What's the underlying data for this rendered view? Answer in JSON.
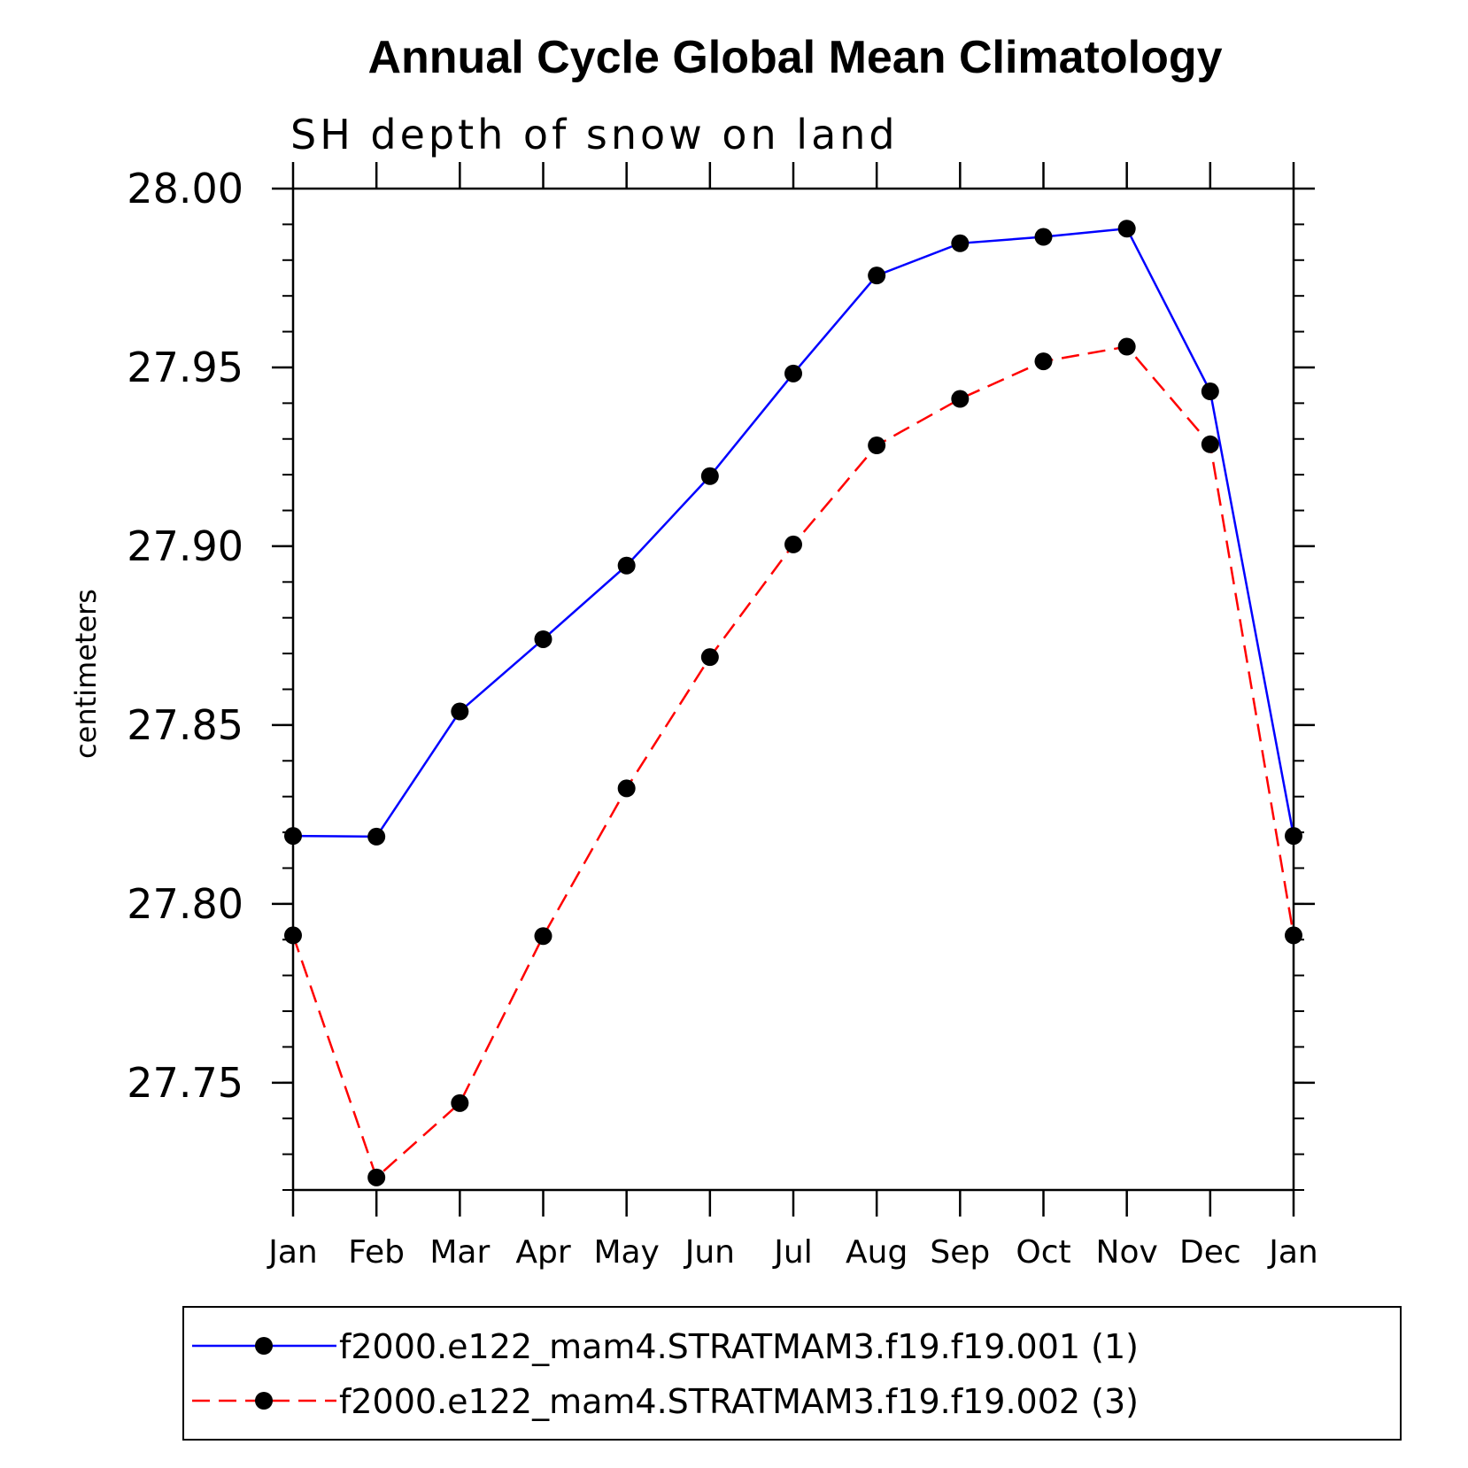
{
  "chart_data": {
    "type": "line",
    "title": "Annual Cycle Global Mean Climatology",
    "subtitle": "SH depth of snow on land",
    "ylabel": "centimeters",
    "xlabel": "",
    "categories": [
      "Jan",
      "Feb",
      "Mar",
      "Apr",
      "May",
      "Jun",
      "Jul",
      "Aug",
      "Sep",
      "Oct",
      "Nov",
      "Dec",
      "Jan"
    ],
    "ylim": [
      27.72,
      28.0
    ],
    "yticks": [
      27.75,
      27.8,
      27.85,
      27.9,
      27.95,
      28.0
    ],
    "ytick_labels": [
      "27.75",
      "27.80",
      "27.85",
      "27.90",
      "27.95",
      "28.00"
    ],
    "yminor_step": 0.01,
    "legend_position": "bottom",
    "series": [
      {
        "name": "f2000.e122_mam4.STRATMAM3.f19.f19.001 (1)",
        "color": "#0000ff",
        "dash": "solid",
        "marker": "filled-circle",
        "values": [
          27.819,
          27.8188,
          27.8538,
          27.874,
          27.8946,
          27.9196,
          27.9483,
          27.9757,
          27.9847,
          27.9865,
          27.9888,
          27.9433,
          27.819
        ]
      },
      {
        "name": "f2000.e122_mam4.STRATMAM3.f19.f19.002 (3)",
        "color": "#ff0000",
        "dash": "dashed",
        "marker": "filled-circle",
        "values": [
          27.7912,
          27.7235,
          27.7443,
          27.791,
          27.8323,
          27.869,
          27.9005,
          27.9282,
          27.9412,
          27.9517,
          27.9558,
          27.9285,
          27.7912
        ]
      }
    ]
  }
}
